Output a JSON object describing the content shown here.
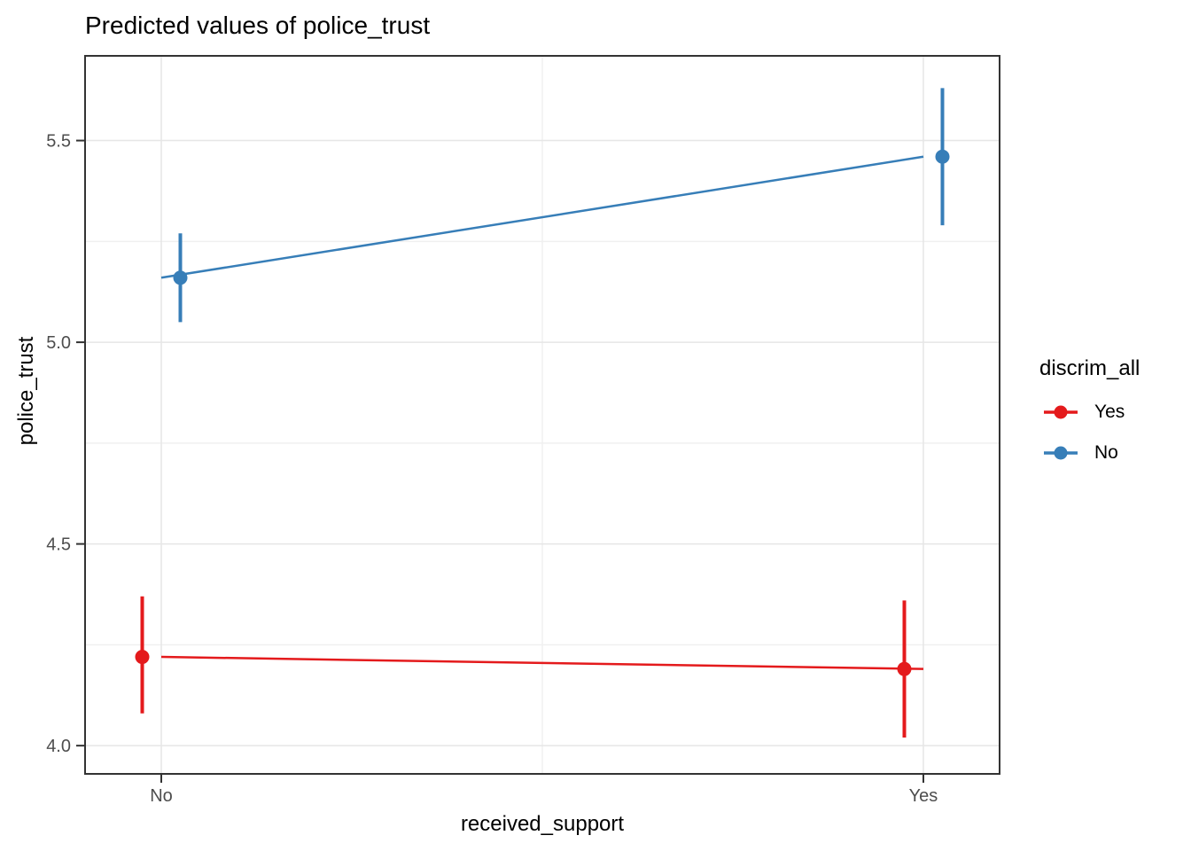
{
  "chart_data": {
    "type": "line",
    "title": "Predicted values of police_trust",
    "xlabel": "received_support",
    "ylabel": "police_trust",
    "categories": [
      "No",
      "Yes"
    ],
    "x_numeric": [
      1,
      2
    ],
    "xlim": [
      0.9,
      2.1
    ],
    "ylim": [
      3.93,
      5.71
    ],
    "y_major_ticks": [
      4.0,
      4.5,
      5.0,
      5.5
    ],
    "y_tick_labels": [
      "4.0",
      "4.5",
      "5.0",
      "5.5"
    ],
    "y_minor_ticks": [
      4.25,
      4.75,
      5.25
    ],
    "x_minor_ticks": [
      1.5
    ],
    "grid": true,
    "legend_title": "discrim_all",
    "legend_position": "right",
    "series": [
      {
        "name": "Yes",
        "color": "#E41A1C",
        "dodge": -0.025,
        "values": [
          4.22,
          4.19
        ],
        "ci_low": [
          4.08,
          4.02
        ],
        "ci_high": [
          4.37,
          4.36
        ]
      },
      {
        "name": "No",
        "color": "#377EB8",
        "dodge": 0.025,
        "values": [
          5.16,
          5.46
        ],
        "ci_low": [
          5.05,
          5.29
        ],
        "ci_high": [
          5.27,
          5.63
        ]
      }
    ]
  },
  "theme": {
    "panel_border_color": "#333333",
    "tick_color": "#333333",
    "tick_label_color": "#4D4D4D",
    "major_grid_color": "#E6E6E6",
    "minor_grid_color": "#F0F0F0",
    "background": "#FFFFFF"
  }
}
